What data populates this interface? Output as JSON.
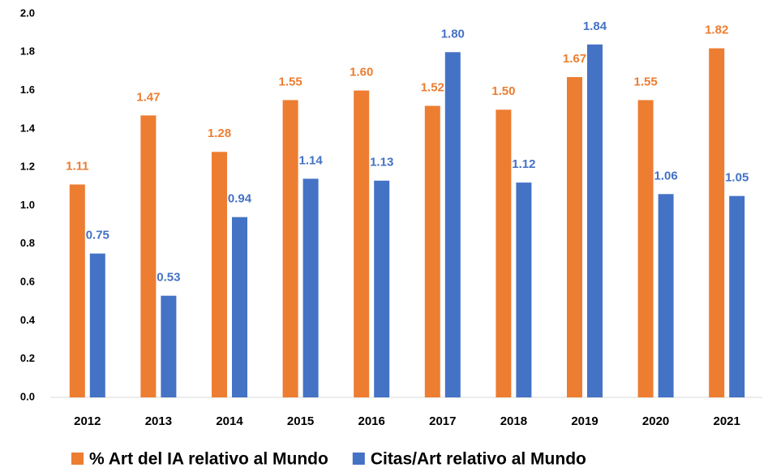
{
  "chart_data": {
    "type": "bar",
    "categories": [
      "2012",
      "2013",
      "2014",
      "2015",
      "2016",
      "2017",
      "2018",
      "2019",
      "2020",
      "2021"
    ],
    "series": [
      {
        "name": "% Art del IA relativo al Mundo",
        "color": "#ed7d31",
        "values": [
          1.11,
          1.47,
          1.28,
          1.55,
          1.6,
          1.52,
          1.5,
          1.67,
          1.55,
          1.82
        ],
        "value_labels": [
          "1.11",
          "1.47",
          "1.28",
          "1.55",
          "1.60",
          "1.52",
          "1.50",
          "1.67",
          "1.55",
          "1.82"
        ]
      },
      {
        "name": "Citas/Art relativo al Mundo",
        "color": "#4472c4",
        "values": [
          0.75,
          0.53,
          0.94,
          1.14,
          1.13,
          1.8,
          1.12,
          1.84,
          1.06,
          1.05
        ],
        "value_labels": [
          "0.75",
          "0.53",
          "0.94",
          "1.14",
          "1.13",
          "1.80",
          "1.12",
          "1.84",
          "1.06",
          "1.05"
        ]
      }
    ],
    "ylim": [
      0,
      2
    ],
    "yticks": [
      {
        "value": 0,
        "label": "0.0"
      },
      0.2,
      0.4,
      0.6,
      0.8,
      {
        "value": 1,
        "label": "1.0"
      },
      1.2,
      1.4,
      1.6,
      1.8,
      {
        "value": 2,
        "label": "2.0"
      }
    ],
    "grid": false,
    "legend": "bottom"
  }
}
